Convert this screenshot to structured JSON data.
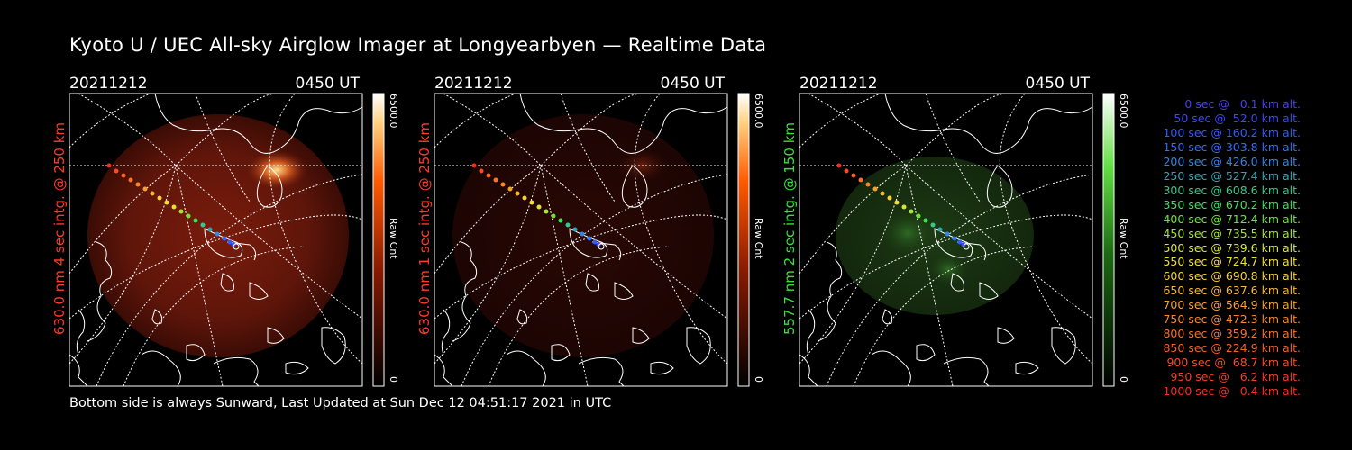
{
  "title": "Kyoto U / UEC All-sky Airglow Imager at Longyearbyen — Realtime Data",
  "footer": "Bottom side is always Sunward, Last Updated at Sun Dec 12 04:51:17 2021 in UTC",
  "panels": [
    {
      "date": "20211212",
      "time": "0450 UT",
      "label": "630.0 nm 4 sec intg. @ 250 km",
      "label_color": "#ff3b2a",
      "cb_max": "6500.0",
      "cb_unit": "Raw Cnt",
      "cb_min": "0",
      "color_scheme": "red"
    },
    {
      "date": "20211212",
      "time": "0450 UT",
      "label": "630.0 nm 1 sec intg. @ 250 km",
      "label_color": "#ff3b2a",
      "cb_max": "6500.0",
      "cb_unit": "Raw Cnt",
      "cb_min": "0",
      "color_scheme": "red"
    },
    {
      "date": "20211212",
      "time": "0450 UT",
      "label": "557.7 nm 2 sec intg. @ 150 km",
      "label_color": "#3ce03c",
      "cb_max": "6500.0",
      "cb_unit": "Raw Cnt",
      "cb_min": "0",
      "color_scheme": "green"
    }
  ],
  "legend": [
    {
      "text": "0 sec @   0.1 km alt.",
      "color": "#4a3cff"
    },
    {
      "text": "50 sec @  52.0 km alt.",
      "color": "#3a48ff"
    },
    {
      "text": "100 sec @ 160.2 km alt.",
      "color": "#2f5cff"
    },
    {
      "text": "150 sec @ 303.8 km alt.",
      "color": "#2f6eff"
    },
    {
      "text": "200 sec @ 426.0 km alt.",
      "color": "#2f86e8"
    },
    {
      "text": "250 sec @ 527.4 km alt.",
      "color": "#2fa6b8"
    },
    {
      "text": "300 sec @ 608.6 km alt.",
      "color": "#35c88a"
    },
    {
      "text": "350 sec @ 670.2 km alt.",
      "color": "#3ee05a"
    },
    {
      "text": "400 sec @ 712.4 km alt.",
      "color": "#6ae63a"
    },
    {
      "text": "450 sec @ 735.5 km alt.",
      "color": "#a6e632"
    },
    {
      "text": "500 sec @ 739.6 km alt.",
      "color": "#d8e632"
    },
    {
      "text": "550 sec @ 724.7 km alt.",
      "color": "#f0e032"
    },
    {
      "text": "600 sec @ 690.8 km alt.",
      "color": "#f8d030"
    },
    {
      "text": "650 sec @ 637.6 km alt.",
      "color": "#f8b82e"
    },
    {
      "text": "700 sec @ 564.9 km alt.",
      "color": "#f8a02c"
    },
    {
      "text": "750 sec @ 472.3 km alt.",
      "color": "#f8882a"
    },
    {
      "text": "800 sec @ 359.2 km alt.",
      "color": "#f87228"
    },
    {
      "text": "850 sec @ 224.9 km alt.",
      "color": "#f85e26"
    },
    {
      "text": "900 sec @  68.7 km alt.",
      "color": "#f84c24"
    },
    {
      "text": "950 sec @   6.2 km alt.",
      "color": "#f83c22"
    },
    {
      "text": "1000 sec @   0.4 km alt.",
      "color": "#f82e20"
    }
  ]
}
